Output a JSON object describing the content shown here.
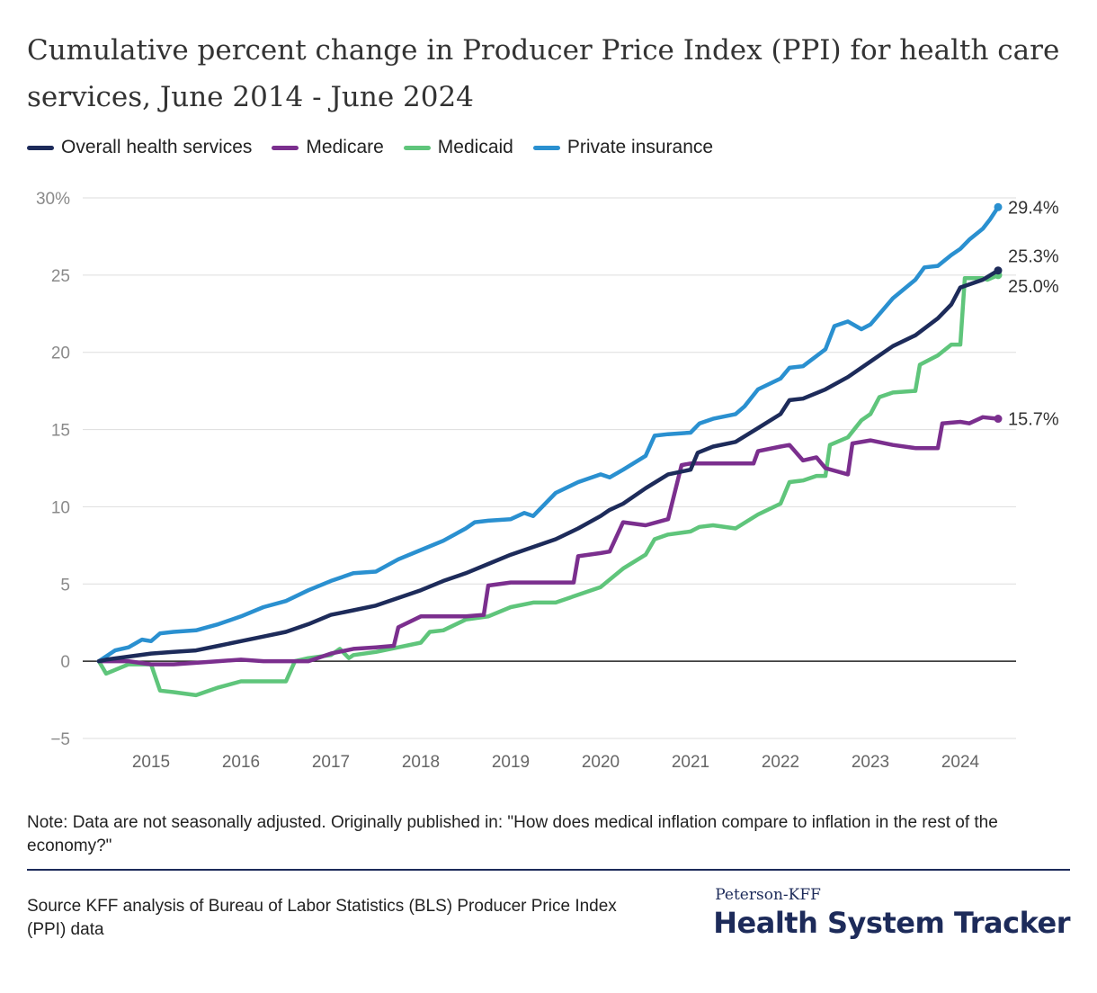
{
  "title": "Cumulative percent change in Producer Price Index (PPI) for health care services, June 2014 - June 2024",
  "note": "Note: Data are not seasonally adjusted. Originally published in: \"How does medical inflation compare to inflation in the rest of the economy?\"",
  "source": "Source KFF analysis of Bureau of Labor Statistics (BLS) Producer Price Index (PPI) data",
  "brand": {
    "top": "Peterson-KFF",
    "main": "Health System Tracker"
  },
  "chart_data": {
    "type": "line",
    "x_axis": {
      "tick_labels": [
        "2015",
        "2016",
        "2017",
        "2018",
        "2019",
        "2020",
        "2021",
        "2022",
        "2023",
        "2024"
      ],
      "range": [
        2014.4,
        2024.6
      ]
    },
    "y_axis": {
      "range": [
        -5,
        30
      ],
      "ticks": [
        -5,
        0,
        5,
        10,
        15,
        20,
        25,
        30
      ],
      "tick_labels": [
        "−5",
        "0",
        "5",
        "10",
        "15",
        "20",
        "25",
        "30%"
      ]
    },
    "grid": true,
    "legend_position": "top-left",
    "series": [
      {
        "name": "Overall health services",
        "color": "#1d2b5a",
        "end_label": "25.3%",
        "points": [
          [
            2014.42,
            0
          ],
          [
            2014.5,
            0.1
          ],
          [
            2014.75,
            0.3
          ],
          [
            2015.0,
            0.5
          ],
          [
            2015.25,
            0.6
          ],
          [
            2015.5,
            0.7
          ],
          [
            2015.75,
            1.0
          ],
          [
            2016.0,
            1.3
          ],
          [
            2016.25,
            1.6
          ],
          [
            2016.5,
            1.9
          ],
          [
            2016.75,
            2.4
          ],
          [
            2017.0,
            3.0
          ],
          [
            2017.25,
            3.3
          ],
          [
            2017.5,
            3.6
          ],
          [
            2017.75,
            4.1
          ],
          [
            2018.0,
            4.6
          ],
          [
            2018.25,
            5.2
          ],
          [
            2018.5,
            5.7
          ],
          [
            2018.75,
            6.3
          ],
          [
            2019.0,
            6.9
          ],
          [
            2019.25,
            7.4
          ],
          [
            2019.5,
            7.9
          ],
          [
            2019.75,
            8.6
          ],
          [
            2020.0,
            9.4
          ],
          [
            2020.1,
            9.8
          ],
          [
            2020.25,
            10.2
          ],
          [
            2020.5,
            11.2
          ],
          [
            2020.75,
            12.1
          ],
          [
            2021.0,
            12.4
          ],
          [
            2021.08,
            13.5
          ],
          [
            2021.25,
            13.9
          ],
          [
            2021.5,
            14.2
          ],
          [
            2021.75,
            15.1
          ],
          [
            2022.0,
            16.0
          ],
          [
            2022.1,
            16.9
          ],
          [
            2022.25,
            17.0
          ],
          [
            2022.5,
            17.6
          ],
          [
            2022.75,
            18.4
          ],
          [
            2023.0,
            19.4
          ],
          [
            2023.25,
            20.4
          ],
          [
            2023.5,
            21.1
          ],
          [
            2023.75,
            22.2
          ],
          [
            2023.9,
            23.1
          ],
          [
            2024.0,
            24.2
          ],
          [
            2024.25,
            24.7
          ],
          [
            2024.42,
            25.3
          ]
        ]
      },
      {
        "name": "Medicare",
        "color": "#7b2f8e",
        "end_label": "15.7%",
        "points": [
          [
            2014.42,
            0
          ],
          [
            2014.75,
            0
          ],
          [
            2015.0,
            -0.2
          ],
          [
            2015.25,
            -0.2
          ],
          [
            2015.5,
            -0.1
          ],
          [
            2015.75,
            0
          ],
          [
            2016.0,
            0.1
          ],
          [
            2016.25,
            0
          ],
          [
            2016.5,
            0
          ],
          [
            2016.75,
            0
          ],
          [
            2017.0,
            0.5
          ],
          [
            2017.25,
            0.8
          ],
          [
            2017.5,
            0.9
          ],
          [
            2017.7,
            1.0
          ],
          [
            2017.75,
            2.2
          ],
          [
            2018.0,
            2.9
          ],
          [
            2018.25,
            2.9
          ],
          [
            2018.5,
            2.9
          ],
          [
            2018.7,
            3.0
          ],
          [
            2018.75,
            4.9
          ],
          [
            2019.0,
            5.1
          ],
          [
            2019.25,
            5.1
          ],
          [
            2019.5,
            5.1
          ],
          [
            2019.7,
            5.1
          ],
          [
            2019.75,
            6.8
          ],
          [
            2020.0,
            7.0
          ],
          [
            2020.1,
            7.1
          ],
          [
            2020.25,
            9.0
          ],
          [
            2020.5,
            8.8
          ],
          [
            2020.75,
            9.2
          ],
          [
            2020.9,
            12.7
          ],
          [
            2021.0,
            12.8
          ],
          [
            2021.25,
            12.8
          ],
          [
            2021.5,
            12.8
          ],
          [
            2021.7,
            12.8
          ],
          [
            2021.75,
            13.6
          ],
          [
            2022.0,
            13.9
          ],
          [
            2022.1,
            14.0
          ],
          [
            2022.25,
            13.0
          ],
          [
            2022.4,
            13.2
          ],
          [
            2022.5,
            12.5
          ],
          [
            2022.75,
            12.1
          ],
          [
            2022.8,
            14.1
          ],
          [
            2023.0,
            14.3
          ],
          [
            2023.25,
            14.0
          ],
          [
            2023.5,
            13.8
          ],
          [
            2023.75,
            13.8
          ],
          [
            2023.8,
            15.4
          ],
          [
            2024.0,
            15.5
          ],
          [
            2024.1,
            15.4
          ],
          [
            2024.25,
            15.8
          ],
          [
            2024.42,
            15.7
          ]
        ]
      },
      {
        "name": "Medicaid",
        "color": "#5fc57b",
        "end_label": "25.0%",
        "points": [
          [
            2014.42,
            0
          ],
          [
            2014.5,
            -0.8
          ],
          [
            2014.75,
            -0.2
          ],
          [
            2015.0,
            -0.2
          ],
          [
            2015.1,
            -1.9
          ],
          [
            2015.25,
            -2.0
          ],
          [
            2015.5,
            -2.2
          ],
          [
            2015.75,
            -1.7
          ],
          [
            2016.0,
            -1.3
          ],
          [
            2016.25,
            -1.3
          ],
          [
            2016.5,
            -1.3
          ],
          [
            2016.6,
            0
          ],
          [
            2016.75,
            0.2
          ],
          [
            2017.0,
            0.4
          ],
          [
            2017.1,
            0.8
          ],
          [
            2017.2,
            0.2
          ],
          [
            2017.25,
            0.4
          ],
          [
            2017.5,
            0.6
          ],
          [
            2017.75,
            0.9
          ],
          [
            2018.0,
            1.2
          ],
          [
            2018.1,
            1.9
          ],
          [
            2018.25,
            2.0
          ],
          [
            2018.5,
            2.7
          ],
          [
            2018.75,
            2.9
          ],
          [
            2019.0,
            3.5
          ],
          [
            2019.25,
            3.8
          ],
          [
            2019.5,
            3.8
          ],
          [
            2019.75,
            4.3
          ],
          [
            2020.0,
            4.8
          ],
          [
            2020.25,
            6.0
          ],
          [
            2020.5,
            6.9
          ],
          [
            2020.6,
            7.9
          ],
          [
            2020.75,
            8.2
          ],
          [
            2021.0,
            8.4
          ],
          [
            2021.1,
            8.7
          ],
          [
            2021.25,
            8.8
          ],
          [
            2021.5,
            8.6
          ],
          [
            2021.75,
            9.5
          ],
          [
            2022.0,
            10.2
          ],
          [
            2022.1,
            11.6
          ],
          [
            2022.25,
            11.7
          ],
          [
            2022.4,
            12.0
          ],
          [
            2022.5,
            12.0
          ],
          [
            2022.55,
            14.0
          ],
          [
            2022.75,
            14.5
          ],
          [
            2022.9,
            15.6
          ],
          [
            2023.0,
            16.0
          ],
          [
            2023.1,
            17.1
          ],
          [
            2023.25,
            17.4
          ],
          [
            2023.5,
            17.5
          ],
          [
            2023.55,
            19.2
          ],
          [
            2023.75,
            19.8
          ],
          [
            2023.9,
            20.5
          ],
          [
            2024.0,
            20.5
          ],
          [
            2024.05,
            24.8
          ],
          [
            2024.25,
            24.8
          ],
          [
            2024.3,
            24.7
          ],
          [
            2024.42,
            25.0
          ]
        ]
      },
      {
        "name": "Private insurance",
        "color": "#2a90d0",
        "end_label": "29.4%",
        "points": [
          [
            2014.42,
            0
          ],
          [
            2014.6,
            0.7
          ],
          [
            2014.75,
            0.9
          ],
          [
            2014.9,
            1.4
          ],
          [
            2015.0,
            1.3
          ],
          [
            2015.1,
            1.8
          ],
          [
            2015.25,
            1.9
          ],
          [
            2015.5,
            2.0
          ],
          [
            2015.75,
            2.4
          ],
          [
            2016.0,
            2.9
          ],
          [
            2016.25,
            3.5
          ],
          [
            2016.5,
            3.9
          ],
          [
            2016.75,
            4.6
          ],
          [
            2017.0,
            5.2
          ],
          [
            2017.25,
            5.7
          ],
          [
            2017.5,
            5.8
          ],
          [
            2017.75,
            6.6
          ],
          [
            2018.0,
            7.2
          ],
          [
            2018.25,
            7.8
          ],
          [
            2018.5,
            8.6
          ],
          [
            2018.6,
            9.0
          ],
          [
            2018.75,
            9.1
          ],
          [
            2019.0,
            9.2
          ],
          [
            2019.15,
            9.6
          ],
          [
            2019.25,
            9.4
          ],
          [
            2019.5,
            10.9
          ],
          [
            2019.75,
            11.6
          ],
          [
            2020.0,
            12.1
          ],
          [
            2020.1,
            11.9
          ],
          [
            2020.25,
            12.4
          ],
          [
            2020.5,
            13.3
          ],
          [
            2020.6,
            14.6
          ],
          [
            2020.75,
            14.7
          ],
          [
            2021.0,
            14.8
          ],
          [
            2021.1,
            15.4
          ],
          [
            2021.25,
            15.7
          ],
          [
            2021.5,
            16.0
          ],
          [
            2021.6,
            16.5
          ],
          [
            2021.75,
            17.6
          ],
          [
            2022.0,
            18.3
          ],
          [
            2022.1,
            19.0
          ],
          [
            2022.25,
            19.1
          ],
          [
            2022.5,
            20.2
          ],
          [
            2022.6,
            21.7
          ],
          [
            2022.75,
            22.0
          ],
          [
            2022.9,
            21.5
          ],
          [
            2023.0,
            21.8
          ],
          [
            2023.25,
            23.5
          ],
          [
            2023.5,
            24.7
          ],
          [
            2023.6,
            25.5
          ],
          [
            2023.75,
            25.6
          ],
          [
            2023.9,
            26.3
          ],
          [
            2024.0,
            26.7
          ],
          [
            2024.1,
            27.3
          ],
          [
            2024.25,
            28.0
          ],
          [
            2024.33,
            28.6
          ],
          [
            2024.42,
            29.4
          ]
        ]
      }
    ]
  }
}
